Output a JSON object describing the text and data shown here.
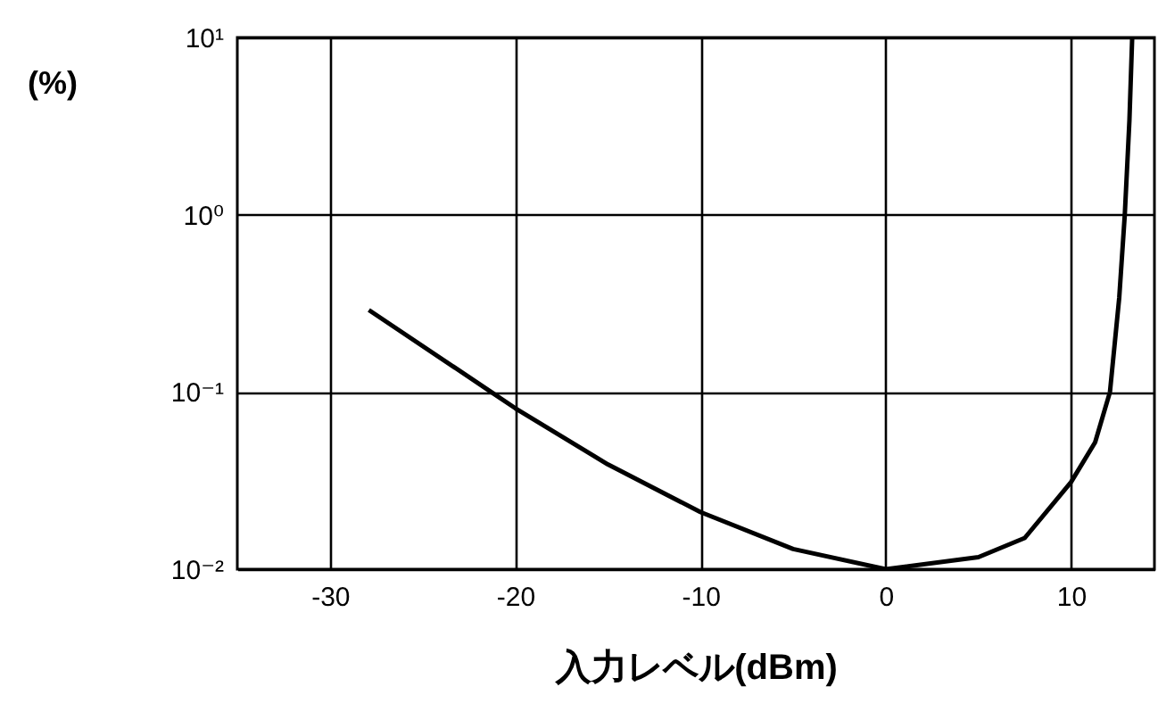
{
  "chart_data": {
    "type": "line",
    "xlabel": "入力レベル(dBm)",
    "ylabel": "(%)",
    "x": [
      -27.9,
      -21.3,
      -20,
      -15,
      -10,
      -5,
      0,
      5,
      7.5,
      10,
      11.3,
      12.1,
      12.6,
      12.9,
      13.15,
      13.3
    ],
    "series": [
      {
        "color": "#000000",
        "values": [
          0.29,
          0.1,
          0.081,
          0.039,
          0.021,
          0.013,
          0.01,
          0.0117,
          0.015,
          0.031,
          0.052,
          0.1,
          0.34,
          1,
          3.4,
          10
        ]
      }
    ],
    "xlim": [
      -35,
      14.5
    ],
    "xticks": [
      -30,
      -20,
      -10,
      0,
      10
    ],
    "ylim": [
      0.01,
      10
    ],
    "yticks": [
      {
        "value": 0.01,
        "label": "10⁻²"
      },
      {
        "value": 0.1,
        "label": "10⁻¹"
      },
      {
        "value": 1,
        "label": "10⁰"
      },
      {
        "value": 10,
        "label": "10¹"
      }
    ],
    "log": true,
    "grid": true,
    "marker": "none",
    "line_style": "solid"
  }
}
